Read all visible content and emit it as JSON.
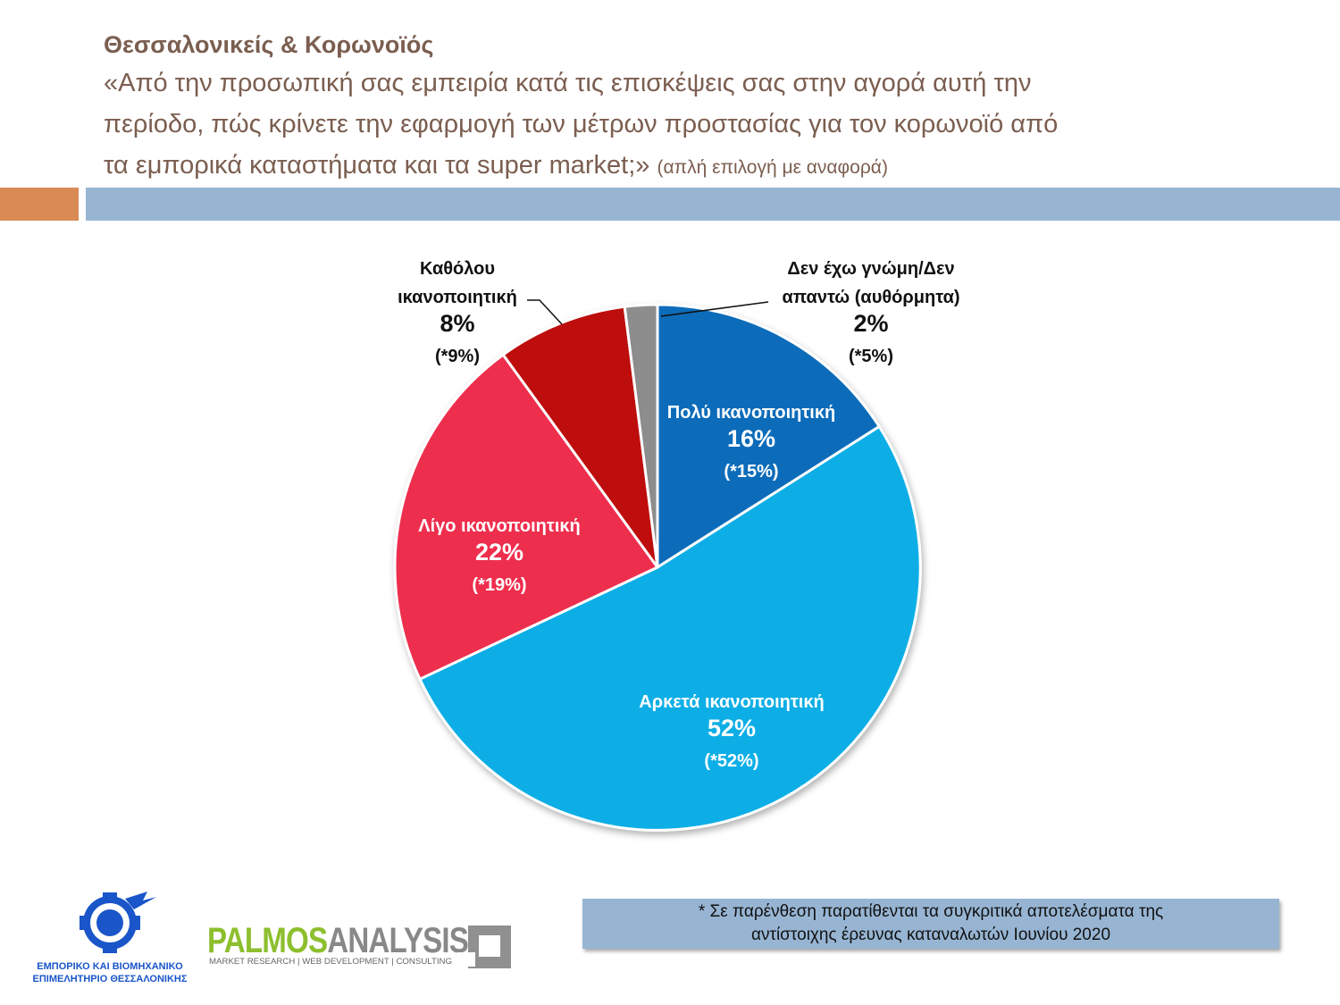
{
  "header": {
    "title": "Θεσσαλονικείς & Κορωνοϊός",
    "question_line1": "«Από την προσωπική σας εμπειρία κατά τις επισκέψεις σας στην αγορά αυτή την",
    "question_line2": "περίοδο, πώς κρίνετε την εφαρμογή των μέτρων προστασίας για τον κορωνοϊό από",
    "question_line3": "τα εμπορικά καταστήματα και τα super market;»",
    "question_note": "(απλή επιλογή με αναφορά)"
  },
  "chart_data": {
    "type": "pie",
    "title": "",
    "slices": [
      {
        "label_line1": "Πολύ ικανοποιητική",
        "label_line2": "",
        "value": 16,
        "value_text": "16%",
        "previous_text": "(*15%)",
        "color": "#0a6cba"
      },
      {
        "label_line1": "Αρκετά ικανοποιητική",
        "label_line2": "",
        "value": 52,
        "value_text": "52%",
        "previous_text": "(*52%)",
        "color": "#0aaee6"
      },
      {
        "label_line1": "Λίγο ικανοποιητική",
        "label_line2": "",
        "value": 22,
        "value_text": "22%",
        "previous_text": "(*19%)",
        "color": "#ee2d4e"
      },
      {
        "label_line1": "Καθόλου",
        "label_line2": "ικανοποιητική",
        "value": 8,
        "value_text": "8%",
        "previous_text": "(*9%)",
        "color": "#bd0a0a"
      },
      {
        "label_line1": "Δεν έχω γνώμη/Δεν",
        "label_line2": "απαντώ (αυθόρμητα)",
        "value": 2,
        "value_text": "2%",
        "previous_text": "(*5%)",
        "color": "#8d8d8d"
      }
    ]
  },
  "footnote": {
    "line1": "* Σε παρένθεση παρατίθενται τα συγκριτικά αποτελέσματα της",
    "line2": "αντίστοιχης έρευνας καταναλωτών Ιουνίου 2020"
  },
  "logos": {
    "chamber_line1": "ΕΜΠΟΡΙΚΟ ΚΑΙ ΒΙΟΜΗΧΑΝΙΚΟ",
    "chamber_line2": "ΕΠΙΜΕΛΗΤΗΡΙΟ ΘΕΣΣΑΛΟΝΙΚΗΣ",
    "palmos_part1": "PALMOS",
    "palmos_part2": "ANALYSIS",
    "palmos_tagline": "MARKET RESEARCH | WEB DEVELOPMENT | CONSULTING"
  }
}
